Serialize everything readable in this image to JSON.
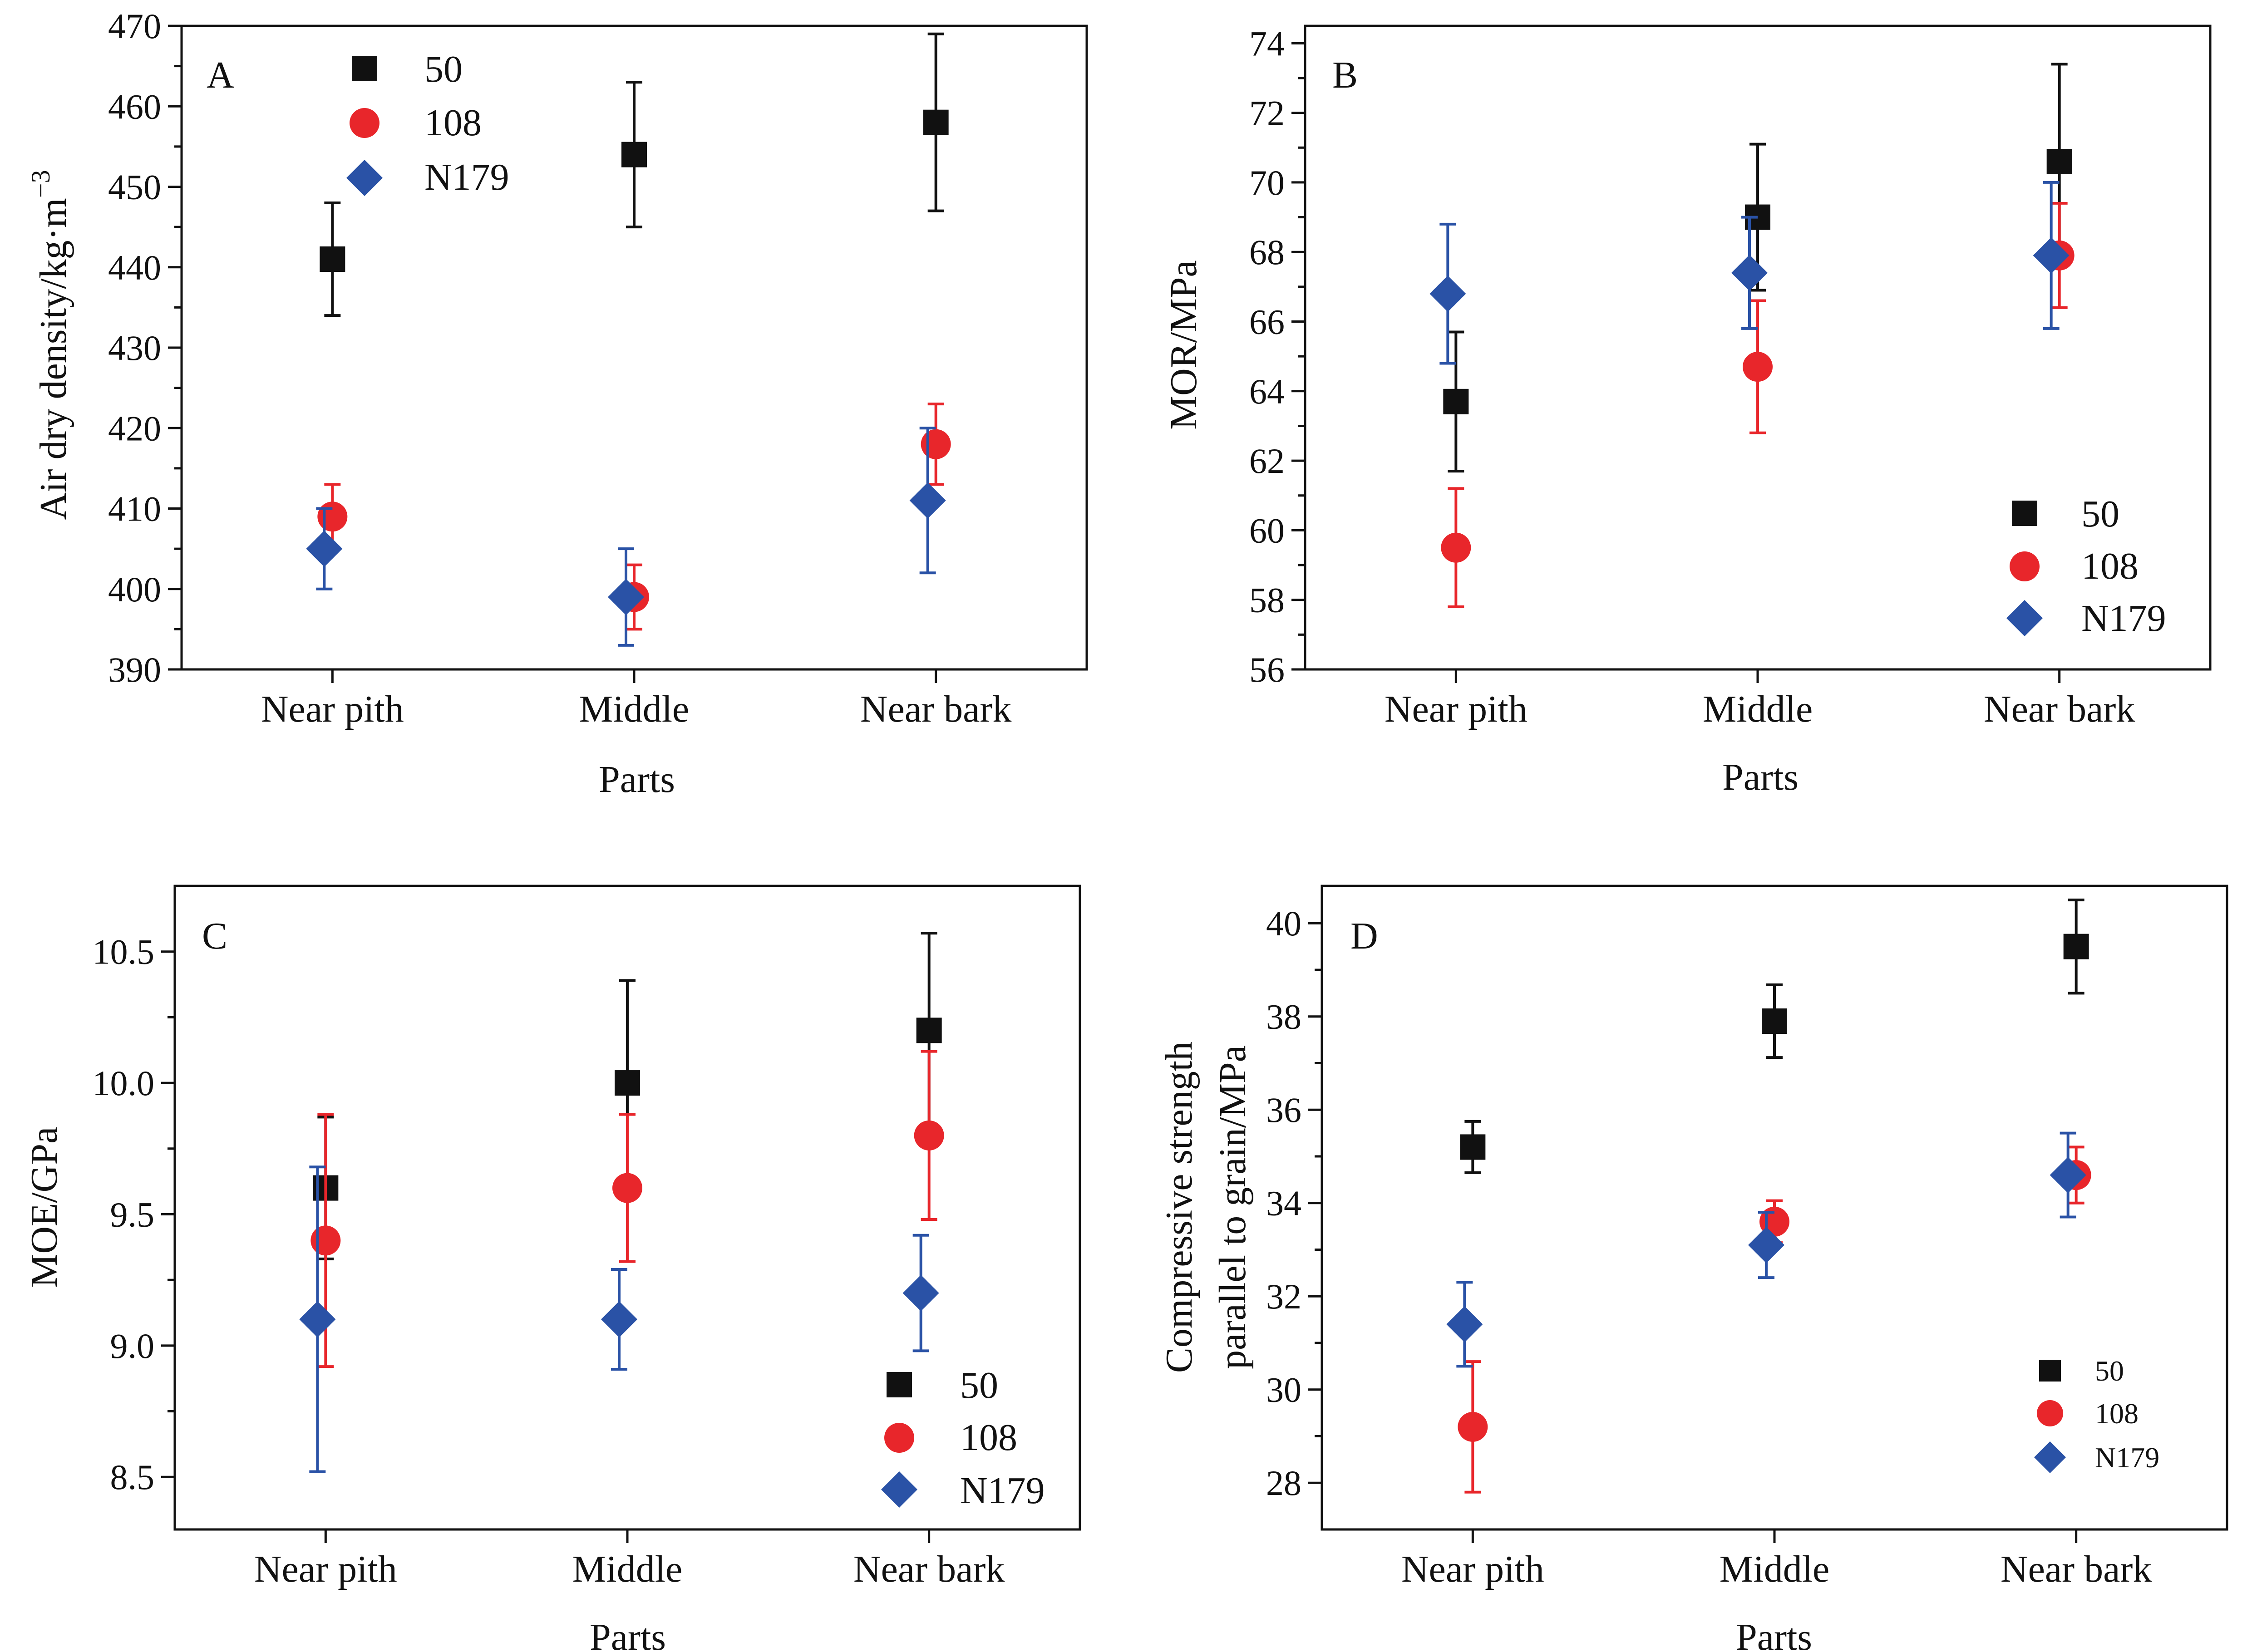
{
  "figure": {
    "colors": {
      "s50": "#111111",
      "s108": "#e8262b",
      "sN179": "#2a52a6"
    },
    "marker_shapes": {
      "s50": "square",
      "s108": "circle",
      "sN179": "diamond"
    }
  },
  "chart_data": [
    {
      "type": "scatter",
      "panel": "A",
      "title": "",
      "xlabel": "Parts",
      "ylabel": "Air dry density/kg·m",
      "ylabel_superscript": "−3",
      "categories": [
        "Near pith",
        "Middle",
        "Near bark"
      ],
      "ylim": [
        390,
        470
      ],
      "yticks": [
        390,
        400,
        410,
        420,
        430,
        440,
        450,
        460,
        470
      ],
      "ytick_labels": [
        "390",
        "400",
        "410",
        "420",
        "430",
        "440",
        "450",
        "460",
        "470"
      ],
      "legend_position": "top-left",
      "series": [
        {
          "name": "50",
          "key": "s50",
          "values": [
            441,
            454,
            458
          ],
          "errors": [
            7,
            9,
            11
          ]
        },
        {
          "name": "108",
          "key": "s108",
          "values": [
            409,
            399,
            418
          ],
          "errors": [
            4,
            4,
            5
          ]
        },
        {
          "name": "N179",
          "key": "sN179",
          "values": [
            405,
            399,
            411
          ],
          "errors": [
            5,
            6,
            9
          ]
        }
      ]
    },
    {
      "type": "scatter",
      "panel": "B",
      "title": "",
      "xlabel": "Parts",
      "ylabel": "MOR/MPa",
      "categories": [
        "Near pith",
        "Middle",
        "Near bark"
      ],
      "ylim": [
        56,
        74.5
      ],
      "yticks": [
        56,
        58,
        60,
        62,
        64,
        66,
        68,
        70,
        72,
        74
      ],
      "ytick_labels": [
        "56",
        "58",
        "60",
        "62",
        "64",
        "66",
        "68",
        "70",
        "72",
        "74"
      ],
      "legend_position": "bottom-right",
      "series": [
        {
          "name": "50",
          "key": "s50",
          "values": [
            63.7,
            69.0,
            70.6
          ],
          "errors": [
            2.0,
            2.1,
            2.8
          ]
        },
        {
          "name": "108",
          "key": "s108",
          "values": [
            59.5,
            64.7,
            67.9
          ],
          "errors": [
            1.7,
            1.9,
            1.5
          ]
        },
        {
          "name": "N179",
          "key": "sN179",
          "values": [
            66.8,
            67.4,
            67.9
          ],
          "errors": [
            2.0,
            1.6,
            2.1
          ]
        }
      ]
    },
    {
      "type": "scatter",
      "panel": "C",
      "title": "",
      "xlabel": "Parts",
      "ylabel": "MOE/GPa",
      "categories": [
        "Near pith",
        "Middle",
        "Near bark"
      ],
      "ylim": [
        8.3,
        10.75
      ],
      "yticks": [
        8.5,
        9.0,
        9.5,
        10.0,
        10.5
      ],
      "ytick_labels": [
        "8.5",
        "9.0",
        "9.5",
        "10.0",
        "10.5"
      ],
      "legend_position": "bottom-right",
      "series": [
        {
          "name": "50",
          "key": "s50",
          "values": [
            9.6,
            10.0,
            10.2
          ],
          "errors": [
            0.27,
            0.39,
            0.37
          ]
        },
        {
          "name": "108",
          "key": "s108",
          "values": [
            9.4,
            9.6,
            9.8
          ],
          "errors": [
            0.48,
            0.28,
            0.32
          ]
        },
        {
          "name": "N179",
          "key": "sN179",
          "values": [
            9.1,
            9.1,
            9.2
          ],
          "errors": [
            0.58,
            0.19,
            0.22
          ]
        }
      ]
    },
    {
      "type": "scatter",
      "panel": "D",
      "title": "",
      "xlabel": "Parts",
      "ylabel_lines": [
        "Compressive strength",
        "parallel to grain/MPa"
      ],
      "categories": [
        "Near pith",
        "Middle",
        "Near bark"
      ],
      "ylim": [
        27,
        40.8
      ],
      "yticks": [
        28,
        30,
        32,
        34,
        36,
        38,
        40
      ],
      "ytick_labels": [
        "28",
        "30",
        "32",
        "34",
        "36",
        "38",
        "40"
      ],
      "legend_position": "bottom-right",
      "series": [
        {
          "name": "50",
          "key": "s50",
          "values": [
            35.2,
            37.9,
            39.5
          ],
          "errors": [
            0.55,
            0.78,
            1.0
          ]
        },
        {
          "name": "108",
          "key": "s108",
          "values": [
            29.2,
            33.6,
            34.6
          ],
          "errors": [
            1.4,
            0.45,
            0.6
          ]
        },
        {
          "name": "N179",
          "key": "sN179",
          "values": [
            31.4,
            33.1,
            34.6
          ],
          "errors": [
            0.9,
            0.7,
            0.9
          ]
        }
      ]
    }
  ]
}
